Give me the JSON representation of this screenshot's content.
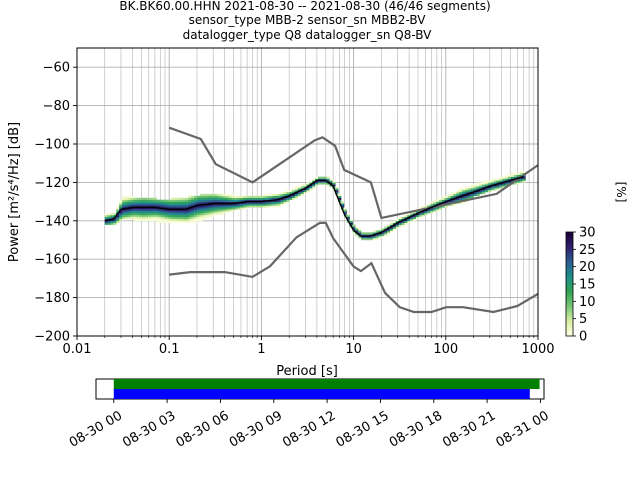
{
  "chart_data": [
    {
      "type": "heatmap",
      "title_lines": [
        "BK.BK60.00.HHN   2021-08-30 -- 2021-08-30  (46/46 segments)",
        "sensor_type MBB-2 sensor_sn MBB2-BV",
        "datalogger_type Q8 datalogger_sn Q8-BV"
      ],
      "xlabel": "Period [s]",
      "ylabel": "Power [m²/s⁴/Hz] [dB]",
      "x_scale": "log",
      "xlim": [
        0.01,
        1000
      ],
      "ylim": [
        -200,
        -50
      ],
      "xticks": [
        {
          "value": 0.01,
          "label": "0.01"
        },
        {
          "value": 0.1,
          "label": "0.1"
        },
        {
          "value": 1,
          "label": "1"
        },
        {
          "value": 10,
          "label": "10"
        },
        {
          "value": 100,
          "label": "100"
        },
        {
          "value": 1000,
          "label": "1000"
        }
      ],
      "yticks": [
        -60,
        -80,
        -100,
        -120,
        -140,
        -160,
        -180,
        -200
      ],
      "grid": true,
      "colorbar": {
        "label": "[%]",
        "range": [
          0,
          30
        ],
        "ticks": [
          0,
          5,
          10,
          15,
          20,
          25,
          30
        ],
        "colors": [
          "#ffffe5",
          "#d9f0a3",
          "#78c679",
          "#31a354",
          "#1d918c",
          "#2c5b8f",
          "#2d1e6e",
          "#1a0033"
        ]
      },
      "mode_line": {
        "name": "mode",
        "color": "#000000",
        "x": [
          0.02,
          0.025,
          0.03,
          0.04,
          0.05,
          0.07,
          0.1,
          0.15,
          0.2,
          0.3,
          0.5,
          0.7,
          1,
          1.5,
          2,
          3,
          4,
          5,
          6,
          7,
          8,
          10,
          12,
          15,
          20,
          30,
          50,
          70,
          100,
          150,
          200,
          300,
          500,
          700
        ],
        "y": [
          -140,
          -139,
          -134,
          -133,
          -133,
          -133,
          -134,
          -134,
          -132,
          -131,
          -131,
          -130,
          -130,
          -129,
          -127,
          -123,
          -119,
          -119,
          -122,
          -130,
          -137,
          -145,
          -148,
          -148,
          -146,
          -141,
          -136,
          -133,
          -130,
          -127,
          -125,
          -122,
          -119,
          -117
        ]
      },
      "spread_band": {
        "x": [
          0.02,
          0.025,
          0.03,
          0.04,
          0.05,
          0.07,
          0.1,
          0.15,
          0.2,
          0.3,
          0.5,
          0.7,
          1,
          1.5,
          2,
          3,
          4,
          5,
          6,
          7,
          8,
          10,
          12,
          15,
          20,
          30,
          50,
          70,
          100,
          150,
          200,
          300,
          500,
          700
        ],
        "low": [
          -142,
          -142,
          -138,
          -139,
          -140,
          -140,
          -141,
          -141,
          -140,
          -137,
          -134,
          -133,
          -133,
          -132,
          -129,
          -125,
          -121,
          -121,
          -124,
          -132,
          -139,
          -147,
          -150,
          -150,
          -148,
          -143,
          -138,
          -135,
          -132,
          -130,
          -127,
          -124,
          -121,
          -119
        ],
        "high": [
          -136,
          -136,
          -127,
          -128,
          -128,
          -129,
          -129,
          -128,
          -127,
          -126,
          -127,
          -127,
          -127,
          -126,
          -124,
          -121,
          -117,
          -117,
          -120,
          -128,
          -135,
          -143,
          -146,
          -146,
          -144,
          -139,
          -134,
          -130,
          -127,
          -123,
          -121,
          -119,
          -116,
          -114
        ]
      },
      "reference_models": [
        {
          "name": "high-noise-model",
          "color": "#666666",
          "x": [
            0.1,
            0.22,
            0.32,
            0.8,
            3.8,
            4.6,
            6.3,
            7.9,
            15.4,
            20,
            354.8,
            1000
          ],
          "y": [
            -91.5,
            -97.4,
            -110.5,
            -120,
            -98,
            -96.5,
            -101,
            -113.5,
            -120,
            -138.5,
            -126,
            -111
          ]
        },
        {
          "name": "low-noise-model",
          "color": "#666666",
          "x": [
            0.1,
            0.17,
            0.4,
            0.8,
            1.24,
            2.4,
            4.3,
            5,
            6,
            10,
            12,
            15.6,
            21.9,
            31.6,
            45,
            70,
            101,
            154,
            328,
            600,
            1000
          ],
          "y": [
            -168,
            -166.7,
            -166.7,
            -169.2,
            -163.7,
            -148.6,
            -141.1,
            -141.1,
            -149,
            -163.8,
            -166.2,
            -162.1,
            -177.5,
            -185,
            -187.5,
            -187.5,
            -185,
            -185,
            -187.5,
            -184.4,
            -178
          ]
        }
      ]
    },
    {
      "type": "timeline",
      "xticks": [
        "08-30 00",
        "08-30 03",
        "08-30 06",
        "08-30 09",
        "08-30 12",
        "08-30 15",
        "08-30 18",
        "08-30 21",
        "08-31 00"
      ],
      "xlim_hours": [
        -1,
        24.2
      ],
      "bars": [
        {
          "name": "data-coverage",
          "color": "#008000",
          "start_hour": 0,
          "end_hour": 23.95
        },
        {
          "name": "segments-used",
          "color": "#0000ff",
          "start_hour": 0,
          "end_hour": 23.4
        }
      ]
    }
  ]
}
